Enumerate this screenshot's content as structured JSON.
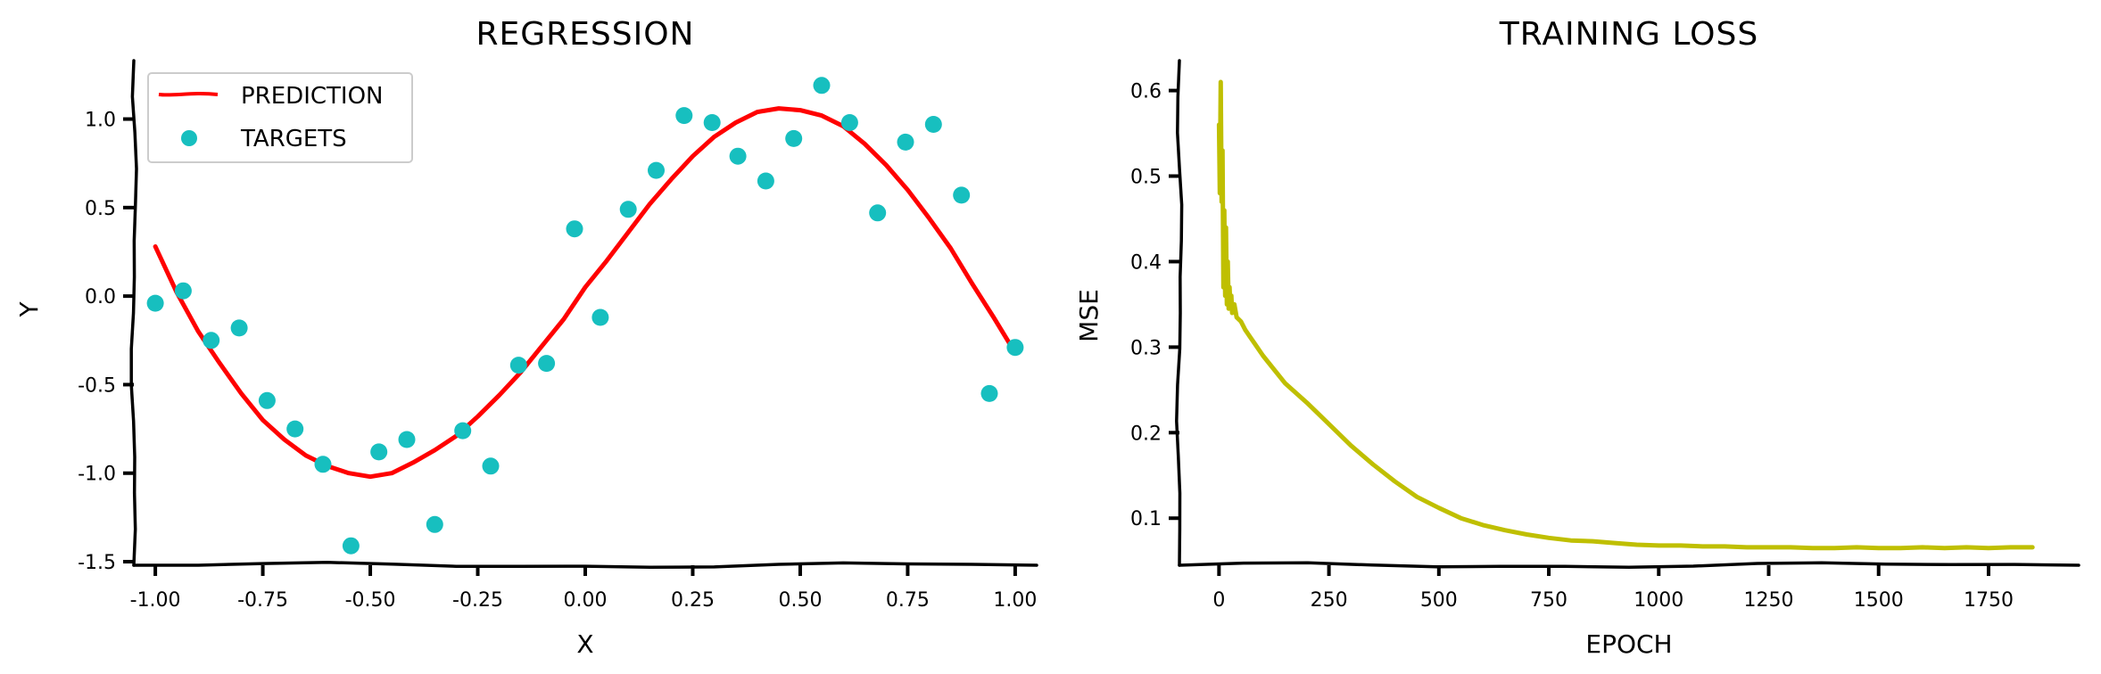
{
  "colors": {
    "prediction": "#ff0000",
    "targets": "#17bfbf",
    "loss": "#bfbf00"
  },
  "chart_data": [
    {
      "type": "scatter",
      "title": "REGRESSION",
      "xlabel": "X",
      "ylabel": "Y",
      "xlim": [
        -1.05,
        1.05
      ],
      "ylim": [
        -1.52,
        1.33
      ],
      "xticks": [
        -1.0,
        -0.75,
        -0.5,
        -0.25,
        0.0,
        0.25,
        0.5,
        0.75,
        1.0
      ],
      "xtick_labels": [
        "-1.00",
        "-0.75",
        "-0.50",
        "-0.25",
        "0.00",
        "0.25",
        "0.50",
        "0.75",
        "1.00"
      ],
      "yticks": [
        -1.5,
        -1.0,
        -0.5,
        0.0,
        0.5,
        1.0
      ],
      "ytick_labels": [
        "-1.5",
        "-1.0",
        "-0.5",
        "0.0",
        "0.5",
        "1.0"
      ],
      "grid": false,
      "legend": {
        "position": "top-left",
        "entries": [
          "PREDICTION",
          "TARGETS"
        ]
      },
      "series": [
        {
          "name": "PREDICTION",
          "type": "line",
          "x": [
            -1.0,
            -0.95,
            -0.9,
            -0.85,
            -0.8,
            -0.75,
            -0.7,
            -0.65,
            -0.6,
            -0.55,
            -0.5,
            -0.45,
            -0.4,
            -0.35,
            -0.3,
            -0.25,
            -0.2,
            -0.15,
            -0.1,
            -0.05,
            0.0,
            0.05,
            0.1,
            0.15,
            0.2,
            0.25,
            0.3,
            0.35,
            0.4,
            0.45,
            0.5,
            0.55,
            0.6,
            0.65,
            0.7,
            0.75,
            0.8,
            0.85,
            0.9,
            0.95,
            1.0
          ],
          "y": [
            0.28,
            0.02,
            -0.2,
            -0.38,
            -0.55,
            -0.7,
            -0.81,
            -0.9,
            -0.96,
            -1.0,
            -1.02,
            -1.0,
            -0.94,
            -0.87,
            -0.79,
            -0.68,
            -0.56,
            -0.43,
            -0.28,
            -0.13,
            0.05,
            0.2,
            0.36,
            0.52,
            0.66,
            0.79,
            0.9,
            0.98,
            1.04,
            1.06,
            1.05,
            1.02,
            0.96,
            0.86,
            0.74,
            0.6,
            0.44,
            0.27,
            0.07,
            -0.12,
            -0.32
          ]
        },
        {
          "name": "TARGETS",
          "type": "scatter",
          "x": [
            -1.0,
            -0.935,
            -0.87,
            -0.805,
            -0.74,
            -0.675,
            -0.61,
            -0.545,
            -0.48,
            -0.415,
            -0.35,
            -0.285,
            -0.22,
            -0.155,
            -0.09,
            -0.025,
            0.035,
            0.1,
            0.165,
            0.23,
            0.295,
            0.355,
            0.42,
            0.485,
            0.55,
            0.615,
            0.68,
            0.745,
            0.81,
            0.875,
            0.94,
            1.0
          ],
          "y": [
            -0.04,
            0.03,
            -0.25,
            -0.18,
            -0.59,
            -0.75,
            -0.95,
            -1.41,
            -0.88,
            -0.81,
            -1.29,
            -0.76,
            -0.96,
            -0.39,
            -0.38,
            0.38,
            -0.12,
            0.49,
            0.71,
            1.02,
            0.98,
            0.79,
            0.65,
            0.89,
            1.19,
            0.98,
            0.47,
            0.87,
            0.97,
            0.57,
            -0.55,
            -0.29
          ]
        }
      ]
    },
    {
      "type": "line",
      "title": "TRAINING LOSS",
      "xlabel": "EPOCH",
      "ylabel": "MSE",
      "xlim": [
        -90,
        1955
      ],
      "ylim": [
        0.045,
        0.635
      ],
      "xticks": [
        0,
        250,
        500,
        750,
        1000,
        1250,
        1500,
        1750
      ],
      "xtick_labels": [
        "0",
        "250",
        "500",
        "750",
        "1000",
        "1250",
        "1500",
        "1750"
      ],
      "yticks": [
        0.1,
        0.2,
        0.3,
        0.4,
        0.5,
        0.6
      ],
      "ytick_labels": [
        "0.1",
        "0.2",
        "0.3",
        "0.4",
        "0.5",
        "0.6"
      ],
      "grid": false,
      "series": [
        {
          "type": "line",
          "x": [
            0,
            2,
            4,
            6,
            8,
            10,
            12,
            14,
            16,
            18,
            20,
            22,
            24,
            26,
            28,
            30,
            35,
            40,
            50,
            60,
            80,
            100,
            150,
            200,
            250,
            300,
            350,
            400,
            450,
            500,
            550,
            600,
            650,
            700,
            750,
            800,
            850,
            900,
            950,
            1000,
            1050,
            1100,
            1150,
            1200,
            1250,
            1300,
            1350,
            1400,
            1450,
            1500,
            1550,
            1600,
            1650,
            1700,
            1750,
            1800,
            1850
          ],
          "y": [
            0.56,
            0.48,
            0.61,
            0.47,
            0.53,
            0.37,
            0.46,
            0.36,
            0.44,
            0.35,
            0.4,
            0.345,
            0.37,
            0.345,
            0.36,
            0.34,
            0.35,
            0.335,
            0.33,
            0.32,
            0.305,
            0.29,
            0.258,
            0.235,
            0.21,
            0.185,
            0.163,
            0.143,
            0.125,
            0.112,
            0.1,
            0.092,
            0.086,
            0.081,
            0.077,
            0.074,
            0.073,
            0.071,
            0.069,
            0.068,
            0.068,
            0.067,
            0.067,
            0.066,
            0.066,
            0.066,
            0.065,
            0.065,
            0.066,
            0.065,
            0.065,
            0.066,
            0.065,
            0.066,
            0.065,
            0.066,
            0.066
          ]
        }
      ]
    }
  ]
}
